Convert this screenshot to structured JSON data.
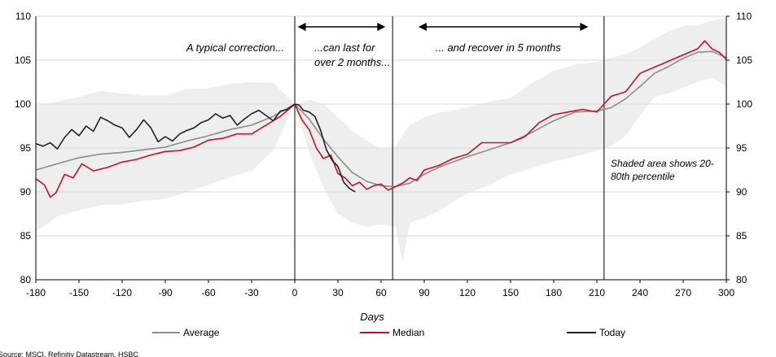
{
  "chart_data": {
    "type": "line",
    "title": "",
    "xlabel": "Days",
    "ylabel": "",
    "xlim": [
      -180,
      300
    ],
    "ylim": [
      80,
      110
    ],
    "x_ticks": [
      -180,
      -150,
      -120,
      -90,
      -60,
      -30,
      0,
      30,
      60,
      90,
      120,
      150,
      180,
      210,
      240,
      270,
      300
    ],
    "y_ticks": [
      80,
      85,
      90,
      95,
      100,
      105,
      110
    ],
    "grid": "horizontal",
    "legend_position": "bottom",
    "series": [
      {
        "name": "Average",
        "color": "#8c8c8c",
        "x": [
          -180,
          -165,
          -150,
          -135,
          -120,
          -105,
          -90,
          -75,
          -60,
          -45,
          -30,
          -15,
          0,
          10,
          20,
          30,
          40,
          50,
          60,
          70,
          80,
          90,
          100,
          110,
          120,
          135,
          150,
          165,
          180,
          195,
          210,
          220,
          230,
          240,
          250,
          260,
          270,
          280,
          290,
          300
        ],
        "values": [
          92.5,
          93.2,
          93.9,
          94.3,
          94.5,
          94.8,
          95.1,
          95.8,
          96.4,
          97.1,
          97.6,
          98.6,
          100,
          98.3,
          96.0,
          94.0,
          92.2,
          91.2,
          90.7,
          90.6,
          91.0,
          92.0,
          92.8,
          93.4,
          94.0,
          94.8,
          95.6,
          96.8,
          98.1,
          99.1,
          99.2,
          99.6,
          100.6,
          102.0,
          103.5,
          104.3,
          105.2,
          105.9,
          106.0,
          105.3
        ]
      },
      {
        "name": "Median",
        "color": "#c8102e",
        "x": [
          -180,
          -174,
          -170,
          -166,
          -160,
          -154,
          -148,
          -140,
          -130,
          -120,
          -110,
          -100,
          -90,
          -80,
          -70,
          -60,
          -50,
          -40,
          -30,
          -20,
          -10,
          0,
          5,
          10,
          15,
          20,
          25,
          30,
          35,
          40,
          45,
          50,
          55,
          60,
          65,
          70,
          75,
          80,
          85,
          90,
          100,
          110,
          120,
          130,
          140,
          150,
          160,
          170,
          180,
          190,
          200,
          210,
          220,
          230,
          240,
          250,
          260,
          270,
          280,
          285,
          290,
          295,
          300
        ],
        "values": [
          91.5,
          90.8,
          89.4,
          89.9,
          92.0,
          91.6,
          93.2,
          92.4,
          92.8,
          93.4,
          93.7,
          94.2,
          94.6,
          94.7,
          95.1,
          95.9,
          96.1,
          96.6,
          96.6,
          97.6,
          98.6,
          100,
          98.2,
          97.1,
          95.0,
          93.8,
          94.2,
          92.1,
          91.6,
          90.7,
          91.1,
          90.3,
          90.7,
          90.9,
          90.2,
          90.6,
          91.0,
          91.6,
          91.3,
          92.5,
          93.0,
          93.8,
          94.3,
          95.6,
          95.6,
          95.6,
          96.3,
          97.9,
          98.8,
          99.1,
          99.4,
          99.1,
          100.9,
          101.4,
          103.5,
          104.2,
          104.9,
          105.6,
          106.3,
          107.2,
          106.3,
          105.9,
          105.1
        ]
      },
      {
        "name": "Today",
        "color": "#222222",
        "x": [
          -180,
          -175,
          -170,
          -165,
          -160,
          -155,
          -150,
          -145,
          -140,
          -135,
          -130,
          -125,
          -120,
          -115,
          -110,
          -105,
          -100,
          -95,
          -90,
          -85,
          -80,
          -75,
          -70,
          -65,
          -60,
          -55,
          -50,
          -45,
          -40,
          -35,
          -30,
          -25,
          -20,
          -15,
          -10,
          -5,
          0,
          3,
          6,
          10,
          14,
          18,
          22,
          26,
          30,
          34,
          38,
          42
        ],
        "values": [
          95.5,
          95.2,
          95.6,
          94.9,
          96.2,
          97.1,
          96.4,
          97.5,
          96.9,
          98.5,
          98.1,
          97.6,
          97.3,
          96.2,
          97.1,
          98.2,
          97.3,
          95.7,
          96.3,
          95.8,
          96.6,
          97.0,
          97.3,
          97.9,
          98.2,
          98.9,
          98.4,
          98.7,
          97.6,
          98.3,
          98.9,
          99.3,
          98.7,
          98.1,
          99.2,
          99.4,
          100.0,
          99.9,
          99.3,
          99.1,
          98.6,
          97.0,
          94.8,
          93.6,
          92.9,
          91.1,
          90.4,
          90.0
        ]
      },
      {
        "name": "Shaded area shows 20-80th percentile",
        "type": "band",
        "color": "#eeeeee",
        "x": [
          -180,
          -165,
          -150,
          -135,
          -120,
          -105,
          -90,
          -75,
          -60,
          -45,
          -30,
          -15,
          0,
          10,
          20,
          30,
          40,
          50,
          60,
          70,
          75,
          80,
          90,
          100,
          110,
          120,
          135,
          150,
          165,
          180,
          195,
          210,
          220,
          230,
          240,
          250,
          260,
          270,
          280,
          290,
          300
        ],
        "lower": [
          85.5,
          87.2,
          87.9,
          88.5,
          88.6,
          89.0,
          89.2,
          90.0,
          90.8,
          91.7,
          92.4,
          94.7,
          100,
          94.5,
          90.5,
          87.5,
          86.5,
          86.0,
          86.3,
          86.0,
          82.0,
          86.5,
          87.0,
          87.8,
          88.9,
          89.8,
          90.8,
          92.0,
          92.7,
          93.5,
          94.0,
          94.7,
          95.2,
          96.4,
          98.7,
          100.8,
          101.2,
          101.9,
          102.5,
          103.0,
          102.0
        ],
        "upper": [
          99.8,
          100.3,
          100.8,
          101.5,
          101.2,
          101.0,
          101.0,
          101.7,
          101.8,
          102.3,
          102.5,
          102.4,
          100,
          100.5,
          100.0,
          98.5,
          97.0,
          95.8,
          94.9,
          95.1,
          96.5,
          97.6,
          98.5,
          99.0,
          99.3,
          99.6,
          100.3,
          100.7,
          102.4,
          103.8,
          104.5,
          104.8,
          105.3,
          105.7,
          106.4,
          107.4,
          108.3,
          108.9,
          109.0,
          109.5,
          109.8
        ]
      }
    ],
    "vertical_lines": [
      0,
      68,
      215
    ],
    "annotations": {
      "correction": "A typical correction...",
      "last_line1": "...can last for",
      "last_line2": "over 2 months...",
      "recover": "... and recover in 5 months",
      "shaded_line1": "Shaded area shows 20-",
      "shaded_line2": "80th percentile"
    },
    "arrows": [
      {
        "from": 2,
        "to": 63
      },
      {
        "from": 86,
        "to": 204
      }
    ],
    "source": "Source: MSCI, Refinitiv Datastream, HSBC"
  }
}
